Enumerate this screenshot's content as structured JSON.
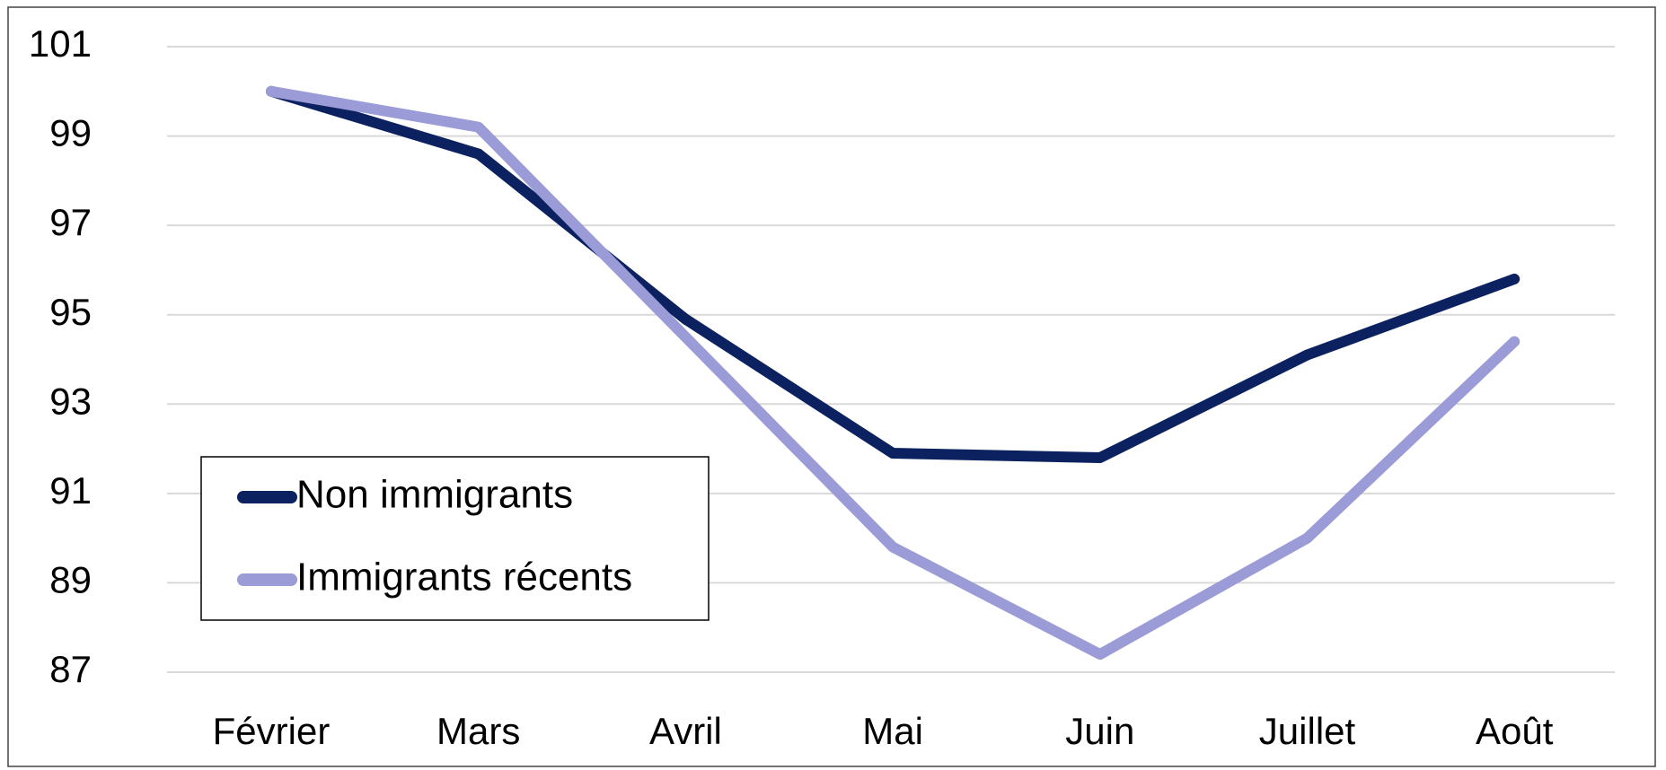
{
  "chart_data": {
    "type": "line",
    "categories": [
      "Février",
      "Mars",
      "Avril",
      "Mai",
      "Juin",
      "Juillet",
      "Août"
    ],
    "series": [
      {
        "name": "Non immigrants",
        "color": "#0b2160",
        "values": [
          100,
          98.6,
          94.9,
          91.9,
          91.8,
          94.1,
          95.8
        ]
      },
      {
        "name": "Immigrants récents",
        "color": "#9b9bd7",
        "values": [
          100,
          99.2,
          94.5,
          89.8,
          87.4,
          90.0,
          94.4
        ]
      }
    ],
    "ylim": [
      87,
      101
    ],
    "yticks": [
      87,
      89,
      91,
      93,
      95,
      97,
      99,
      101
    ],
    "grid": true,
    "legend_position": "lower left"
  }
}
